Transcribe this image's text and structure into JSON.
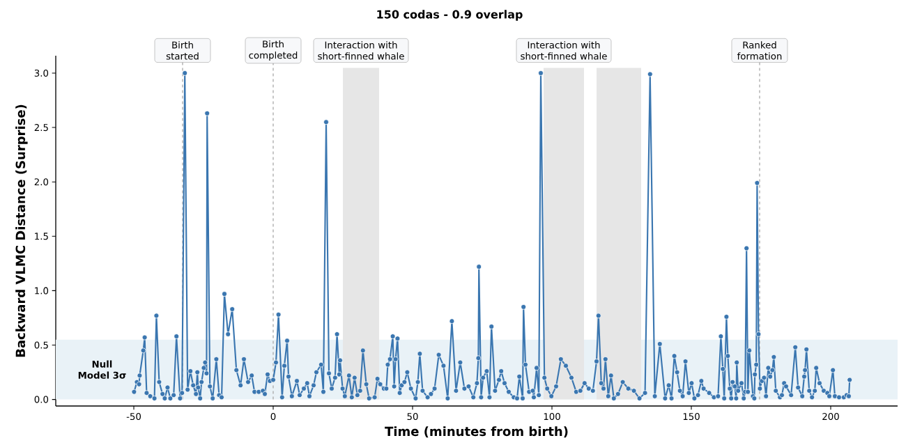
{
  "chart_data": {
    "type": "line",
    "title": "150 codas - 0.9 overlap",
    "xlabel": "Time (minutes from birth)",
    "ylabel": "Backward VLMC Distance (Surprise)",
    "x": [
      -49.9,
      -48.9,
      -48.1,
      -47.9,
      -46.6,
      -46.1,
      -45.4,
      -44.1,
      -42.6,
      -41.9,
      -40.9,
      -39.7,
      -38.9,
      -37.9,
      -36.9,
      -35.7,
      -34.7,
      -33.4,
      -32.7,
      -31.7,
      -30.7,
      -29.7,
      -28.7,
      -27.7,
      -27.2,
      -26.9,
      -26.2,
      -25.7,
      -24.9,
      -24.4,
      -23.9,
      -23.7,
      -22.7,
      -21.7,
      -20.4,
      -19.4,
      -18.5,
      -17.5,
      -16.2,
      -14.7,
      -13.2,
      -11.7,
      -10.5,
      -9.0,
      -7.7,
      -6.7,
      -5.2,
      -3.7,
      -3.0,
      -2.0,
      -1.2,
      0.0,
      1.0,
      1.9,
      3.2,
      4.0,
      5.0,
      5.5,
      6.7,
      8.5,
      9.5,
      11.0,
      12.2,
      13.0,
      14.5,
      15.5,
      17.2,
      18.0,
      19.0,
      20.0,
      21.0,
      22.2,
      22.9,
      23.7,
      24.0,
      24.9,
      25.7,
      27.2,
      28.2,
      29.2,
      30.2,
      31.2,
      32.2,
      33.4,
      34.4,
      36.4,
      37.4,
      38.4,
      39.7,
      40.6,
      41.1,
      41.9,
      42.9,
      43.4,
      43.9,
      44.6,
      45.4,
      46.1,
      47.1,
      48.1,
      49.4,
      51.1,
      51.9,
      52.6,
      53.6,
      55.4,
      56.6,
      57.9,
      59.4,
      61.1,
      62.6,
      64.1,
      65.6,
      67.1,
      68.6,
      70.1,
      71.8,
      73.1,
      73.6,
      73.8,
      74.6,
      75.3,
      76.6,
      77.6,
      78.3,
      79.6,
      81.0,
      81.8,
      83.0,
      84.5,
      86.3,
      87.5,
      88.3,
      89.5,
      89.8,
      90.5,
      91.8,
      93.1,
      93.5,
      94.5,
      95.3,
      96.0,
      97.3,
      98.3,
      99.8,
      101.5,
      103.2,
      105.0,
      107.0,
      108.7,
      110.2,
      111.7,
      113.2,
      114.7,
      116.0,
      116.7,
      117.7,
      118.5,
      119.2,
      120.2,
      121.2,
      122.2,
      123.7,
      125.4,
      127.4,
      129.4,
      131.4,
      133.4,
      135.2,
      136.9,
      138.7,
      140.6,
      141.9,
      142.9,
      143.9,
      144.9,
      145.9,
      146.9,
      147.9,
      149.1,
      150.1,
      151.1,
      152.4,
      153.6,
      154.4,
      156.4,
      158.1,
      159.6,
      160.6,
      161.3,
      161.8,
      162.6,
      163.1,
      163.8,
      164.3,
      164.8,
      165.6,
      166.1,
      166.3,
      166.8,
      168.0,
      168.8,
      169.3,
      169.8,
      170.3,
      170.8,
      172.1,
      172.6,
      172.8,
      173.3,
      173.6,
      174.1,
      174.6,
      175.3,
      176.1,
      176.8,
      177.6,
      178.3,
      179.1,
      179.6,
      180.3,
      181.8,
      182.5,
      183.3,
      184.0,
      185.8,
      187.3,
      188.3,
      189.8,
      190.5,
      190.8,
      191.3,
      192.3,
      193.3,
      194.3,
      194.8,
      196.0,
      197.5,
      198.8,
      199.5,
      200.8,
      201.5,
      203.0,
      204.7,
      205.7,
      206.5,
      206.8
    ],
    "series": [
      {
        "color": "#3a76b0",
        "values": [
          0.07,
          0.16,
          0.14,
          0.22,
          0.45,
          0.57,
          0.06,
          0.03,
          0.01,
          0.77,
          0.16,
          0.05,
          0.01,
          0.11,
          0.01,
          0.04,
          0.58,
          0.01,
          0.06,
          3.0,
          0.09,
          0.26,
          0.13,
          0.05,
          0.25,
          0.11,
          0.01,
          0.16,
          0.29,
          0.34,
          0.24,
          2.63,
          0.12,
          0.01,
          0.37,
          0.04,
          0.02,
          0.97,
          0.6,
          0.83,
          0.27,
          0.13,
          0.37,
          0.16,
          0.22,
          0.07,
          0.07,
          0.08,
          0.05,
          0.23,
          0.17,
          0.18,
          0.34,
          0.78,
          0.02,
          0.31,
          0.54,
          0.21,
          0.03,
          0.17,
          0.04,
          0.1,
          0.15,
          0.03,
          0.13,
          0.25,
          0.32,
          0.07,
          2.55,
          0.24,
          0.1,
          0.2,
          0.6,
          0.23,
          0.36,
          0.1,
          0.03,
          0.22,
          0.02,
          0.2,
          0.04,
          0.08,
          0.45,
          0.14,
          0.01,
          0.02,
          0.19,
          0.14,
          0.1,
          0.1,
          0.32,
          0.37,
          0.58,
          0.12,
          0.37,
          0.56,
          0.06,
          0.13,
          0.16,
          0.25,
          0.1,
          0.01,
          0.16,
          0.42,
          0.08,
          0.02,
          0.05,
          0.1,
          0.41,
          0.31,
          0.01,
          0.72,
          0.08,
          0.34,
          0.1,
          0.12,
          0.02,
          0.15,
          0.38,
          1.22,
          0.02,
          0.2,
          0.26,
          0.02,
          0.67,
          0.08,
          0.18,
          0.26,
          0.15,
          0.07,
          0.02,
          0.01,
          0.21,
          0.01,
          0.85,
          0.32,
          0.07,
          0.08,
          0.02,
          0.29,
          0.04,
          3.0,
          0.2,
          0.1,
          0.03,
          0.12,
          0.37,
          0.31,
          0.2,
          0.07,
          0.08,
          0.15,
          0.1,
          0.08,
          0.35,
          0.77,
          0.15,
          0.1,
          0.37,
          0.03,
          0.22,
          0.01,
          0.05,
          0.16,
          0.1,
          0.08,
          0.01,
          0.06,
          2.99,
          0.03,
          0.51,
          0.01,
          0.13,
          0.01,
          0.4,
          0.25,
          0.08,
          0.03,
          0.35,
          0.06,
          0.15,
          0.01,
          0.04,
          0.17,
          0.1,
          0.06,
          0.02,
          0.03,
          0.58,
          0.28,
          0.01,
          0.76,
          0.4,
          0.1,
          0.01,
          0.16,
          0.12,
          0.01,
          0.34,
          0.08,
          0.15,
          0.01,
          0.07,
          1.39,
          0.07,
          0.45,
          0.03,
          0.01,
          0.23,
          0.32,
          1.99,
          0.6,
          0.1,
          0.17,
          0.2,
          0.03,
          0.29,
          0.21,
          0.27,
          0.39,
          0.08,
          0.02,
          0.04,
          0.15,
          0.12,
          0.04,
          0.48,
          0.11,
          0.03,
          0.21,
          0.27,
          0.46,
          0.08,
          0.02,
          0.08,
          0.29,
          0.15,
          0.08,
          0.06,
          0.03,
          0.27,
          0.03,
          0.02,
          0.02,
          0.04,
          0.03,
          0.18
        ]
      }
    ],
    "xlim": [
      -78,
      224
    ],
    "ylim": [
      -0.06,
      3.16
    ],
    "xticks": [
      -50,
      0,
      50,
      100,
      150,
      200
    ],
    "yticks": [
      {
        "value": 0,
        "label": "0.0"
      },
      {
        "value": 0.5,
        "label": "0.5"
      },
      {
        "value": 1,
        "label": "1.0"
      },
      {
        "value": 1.5,
        "label": "1.5"
      },
      {
        "value": 2,
        "label": "2.0"
      },
      {
        "value": 2.5,
        "label": "2.5"
      },
      {
        "value": 3,
        "label": "3.0"
      }
    ],
    "marker": "circle",
    "line_style": "solid",
    "ref_lines": [
      {
        "axis": "x",
        "value": -32.5,
        "label": "Birth started",
        "color": "#aaaaaa",
        "line_style": "dashed"
      },
      {
        "axis": "x",
        "value": 0,
        "label": "Birth completed",
        "color": "#aaaaaa",
        "line_style": "dashed"
      },
      {
        "axis": "x",
        "value": 174.5,
        "label": "Ranked formation",
        "color": "#aaaaaa",
        "line_style": "dashed"
      }
    ],
    "bands": [
      {
        "axis": "y",
        "from": 0,
        "to": 0.55,
        "label": "Null Model 3σ",
        "color": "#e9f2f7"
      },
      {
        "axis": "x",
        "from": 25,
        "to": 38,
        "label": "Interaction with short-finned whale",
        "color": "#e6e6e6"
      },
      {
        "axis": "x",
        "from": 97,
        "to": 111.5,
        "label": "Interaction with short-finned whale",
        "color": "#e6e6e6"
      },
      {
        "axis": "x",
        "from": 116,
        "to": 132,
        "color": "#e6e6e6"
      }
    ]
  }
}
